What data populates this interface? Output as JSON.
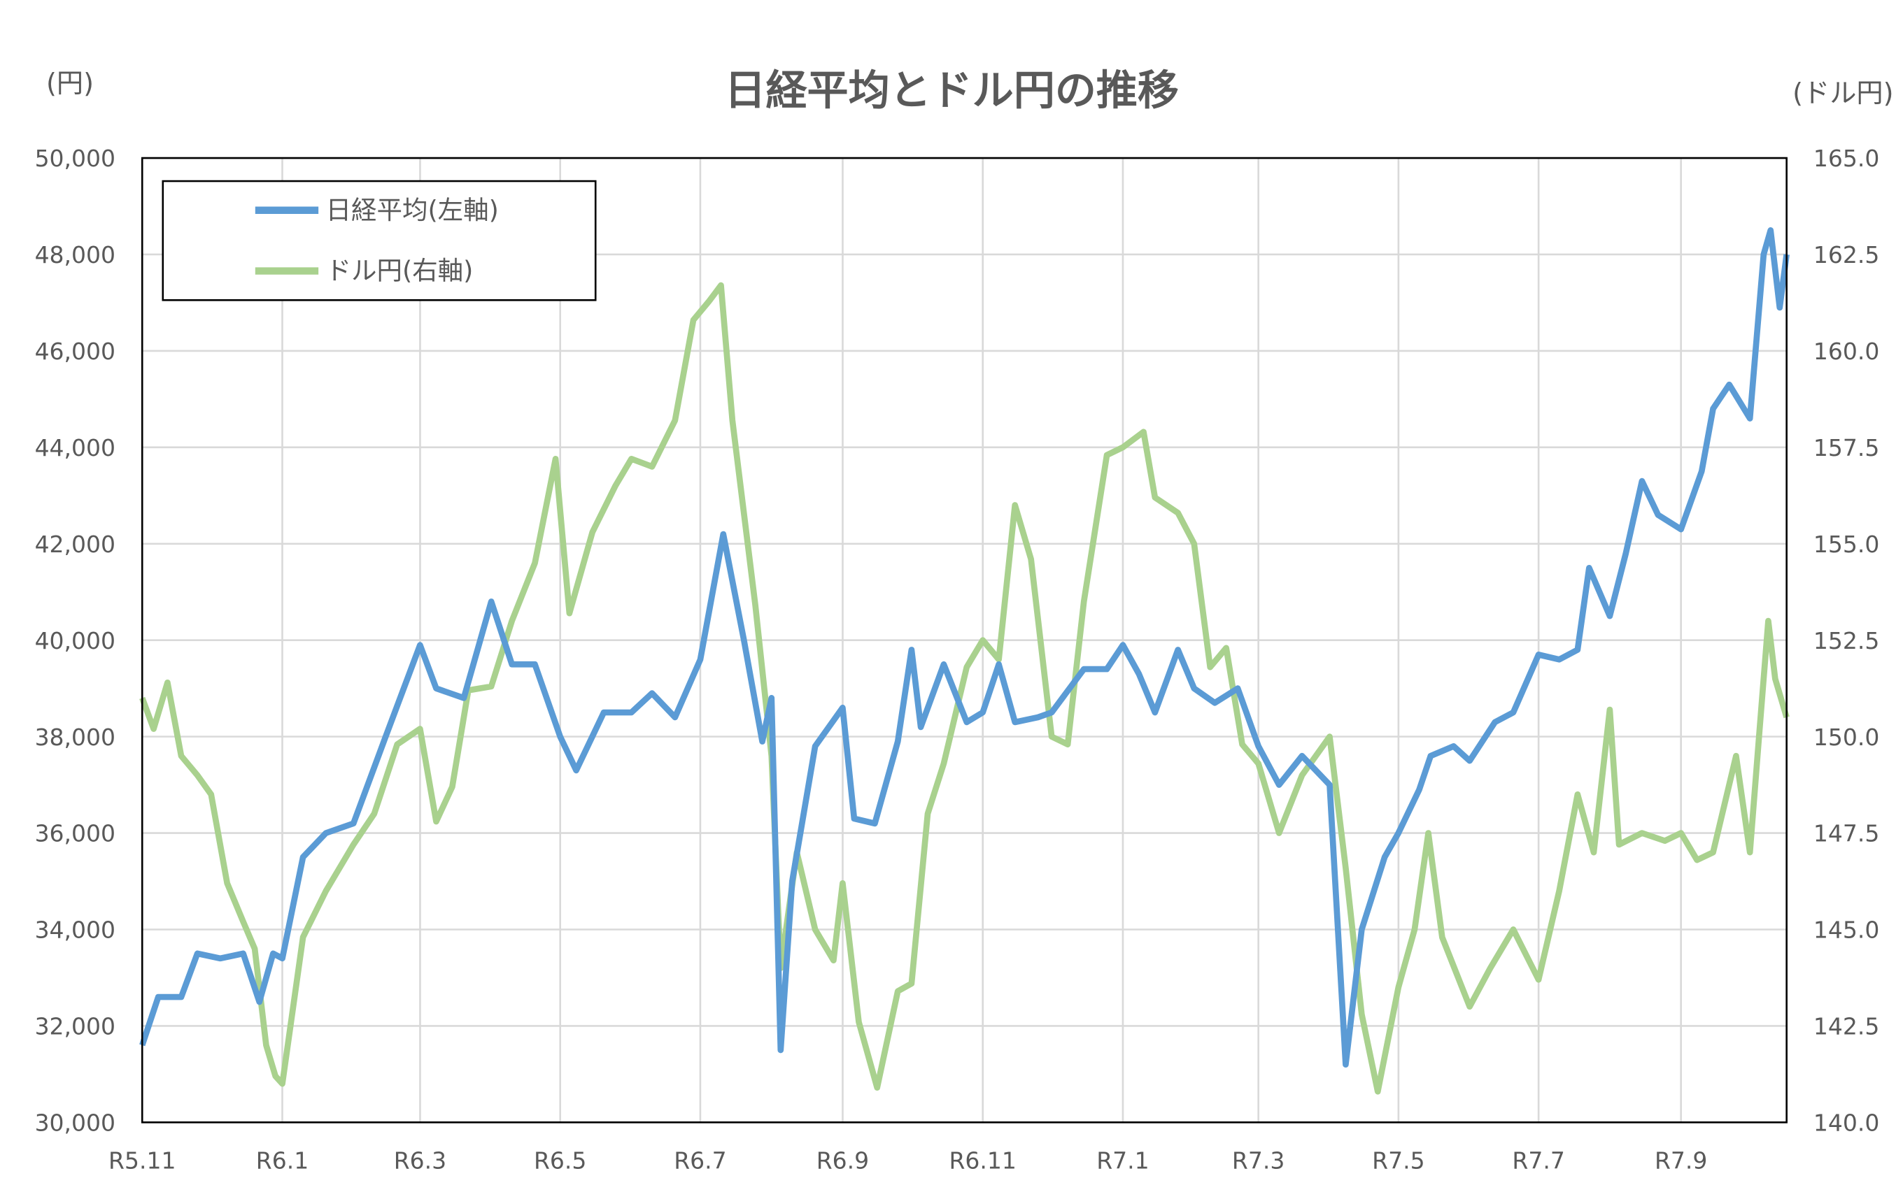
{
  "chart_data": {
    "type": "line",
    "title": "日経平均とドル円の推移",
    "left_unit": "(円)",
    "right_unit": "(ドル円)",
    "y_left": {
      "range": [
        30000,
        50000
      ],
      "ticks": [
        "30,000",
        "32,000",
        "34,000",
        "36,000",
        "38,000",
        "40,000",
        "42,000",
        "44,000",
        "46,000",
        "48,000",
        "50,000"
      ]
    },
    "y_right": {
      "range": [
        140.0,
        165.0
      ],
      "ticks": [
        "140.0",
        "142.5",
        "145.0",
        "147.5",
        "150.0",
        "152.5",
        "155.0",
        "157.5",
        "160.0",
        "162.5",
        "165.0"
      ]
    },
    "x_ticks": [
      {
        "label": "R5.11",
        "date": "2023-11-01"
      },
      {
        "label": "R6.1",
        "date": "2024-01-01"
      },
      {
        "label": "R6.3",
        "date": "2024-03-01"
      },
      {
        "label": "R6.5",
        "date": "2024-05-01"
      },
      {
        "label": "R6.7",
        "date": "2024-07-01"
      },
      {
        "label": "R6.9",
        "date": "2024-09-01"
      },
      {
        "label": "R6.11",
        "date": "2024-11-01"
      },
      {
        "label": "R7.1",
        "date": "2025-01-01"
      },
      {
        "label": "R7.3",
        "date": "2025-03-01"
      },
      {
        "label": "R7.5",
        "date": "2025-05-01"
      },
      {
        "label": "R7.7",
        "date": "2025-07-01"
      },
      {
        "label": "R7.9",
        "date": "2025-09-01"
      }
    ],
    "x_range": [
      "2023-11-01",
      "2025-10-17"
    ],
    "grid": true,
    "legend_position": "top-left",
    "series": [
      {
        "name": "日経平均(左軸)",
        "axis": "left",
        "color": "#5B9BD5",
        "points": [
          [
            "2023-11-01",
            31600
          ],
          [
            "2023-11-08",
            32600
          ],
          [
            "2023-11-18",
            32600
          ],
          [
            "2023-11-25",
            33500
          ],
          [
            "2023-12-05",
            33400
          ],
          [
            "2023-12-15",
            33500
          ],
          [
            "2023-12-22",
            32500
          ],
          [
            "2023-12-28",
            33500
          ],
          [
            "2024-01-01",
            33400
          ],
          [
            "2024-01-10",
            35500
          ],
          [
            "2024-01-20",
            36000
          ],
          [
            "2024-02-01",
            36200
          ],
          [
            "2024-02-15",
            38000
          ],
          [
            "2024-03-01",
            39900
          ],
          [
            "2024-03-08",
            39000
          ],
          [
            "2024-03-20",
            38800
          ],
          [
            "2024-04-01",
            40800
          ],
          [
            "2024-04-10",
            39500
          ],
          [
            "2024-04-20",
            39500
          ],
          [
            "2024-05-01",
            38000
          ],
          [
            "2024-05-08",
            37300
          ],
          [
            "2024-05-20",
            38500
          ],
          [
            "2024-06-01",
            38500
          ],
          [
            "2024-06-10",
            38900
          ],
          [
            "2024-06-20",
            38400
          ],
          [
            "2024-07-01",
            39600
          ],
          [
            "2024-07-11",
            42200
          ],
          [
            "2024-07-20",
            40000
          ],
          [
            "2024-07-28",
            37900
          ],
          [
            "2024-08-01",
            38800
          ],
          [
            "2024-08-05",
            31500
          ],
          [
            "2024-08-10",
            35000
          ],
          [
            "2024-08-20",
            37800
          ],
          [
            "2024-09-01",
            38600
          ],
          [
            "2024-09-06",
            36300
          ],
          [
            "2024-09-15",
            36200
          ],
          [
            "2024-09-25",
            37900
          ],
          [
            "2024-10-01",
            39800
          ],
          [
            "2024-10-05",
            38200
          ],
          [
            "2024-10-15",
            39500
          ],
          [
            "2024-10-25",
            38300
          ],
          [
            "2024-11-01",
            38500
          ],
          [
            "2024-11-08",
            39500
          ],
          [
            "2024-11-15",
            38300
          ],
          [
            "2024-11-25",
            38400
          ],
          [
            "2024-12-01",
            38500
          ],
          [
            "2024-12-15",
            39400
          ],
          [
            "2024-12-25",
            39400
          ],
          [
            "2025-01-01",
            39900
          ],
          [
            "2025-01-08",
            39300
          ],
          [
            "2025-01-15",
            38500
          ],
          [
            "2025-01-25",
            39800
          ],
          [
            "2025-02-01",
            39000
          ],
          [
            "2025-02-10",
            38700
          ],
          [
            "2025-02-20",
            39000
          ],
          [
            "2025-03-01",
            37800
          ],
          [
            "2025-03-10",
            37000
          ],
          [
            "2025-03-20",
            37600
          ],
          [
            "2025-04-01",
            37000
          ],
          [
            "2025-04-08",
            31200
          ],
          [
            "2025-04-15",
            34000
          ],
          [
            "2025-04-25",
            35500
          ],
          [
            "2025-05-01",
            36000
          ],
          [
            "2025-05-10",
            36900
          ],
          [
            "2025-05-15",
            37600
          ],
          [
            "2025-05-25",
            37800
          ],
          [
            "2025-06-01",
            37500
          ],
          [
            "2025-06-12",
            38300
          ],
          [
            "2025-06-20",
            38500
          ],
          [
            "2025-07-01",
            39700
          ],
          [
            "2025-07-10",
            39600
          ],
          [
            "2025-07-18",
            39800
          ],
          [
            "2025-07-23",
            41500
          ],
          [
            "2025-08-01",
            40500
          ],
          [
            "2025-08-08",
            41800
          ],
          [
            "2025-08-15",
            43300
          ],
          [
            "2025-08-22",
            42600
          ],
          [
            "2025-09-01",
            42300
          ],
          [
            "2025-09-10",
            43500
          ],
          [
            "2025-09-15",
            44800
          ],
          [
            "2025-09-22",
            45300
          ],
          [
            "2025-10-01",
            44600
          ],
          [
            "2025-10-07",
            48000
          ],
          [
            "2025-10-10",
            48500
          ],
          [
            "2025-10-14",
            46900
          ],
          [
            "2025-10-17",
            48000
          ]
        ]
      },
      {
        "name": "ドル円(右軸)",
        "axis": "right",
        "color": "#A9D18E",
        "points": [
          [
            "2023-11-01",
            151.0
          ],
          [
            "2023-11-06",
            150.2
          ],
          [
            "2023-11-12",
            151.4
          ],
          [
            "2023-11-18",
            149.5
          ],
          [
            "2023-11-25",
            149.0
          ],
          [
            "2023-12-01",
            148.5
          ],
          [
            "2023-12-08",
            146.2
          ],
          [
            "2023-12-15",
            145.2
          ],
          [
            "2023-12-20",
            144.5
          ],
          [
            "2023-12-25",
            142.0
          ],
          [
            "2023-12-29",
            141.2
          ],
          [
            "2024-01-01",
            141.0
          ],
          [
            "2024-01-10",
            144.8
          ],
          [
            "2024-01-20",
            146.0
          ],
          [
            "2024-02-01",
            147.2
          ],
          [
            "2024-02-10",
            148.0
          ],
          [
            "2024-02-20",
            149.8
          ],
          [
            "2024-03-01",
            150.2
          ],
          [
            "2024-03-08",
            147.8
          ],
          [
            "2024-03-15",
            148.7
          ],
          [
            "2024-03-22",
            151.2
          ],
          [
            "2024-04-01",
            151.3
          ],
          [
            "2024-04-10",
            153.0
          ],
          [
            "2024-04-20",
            154.5
          ],
          [
            "2024-04-29",
            157.2
          ],
          [
            "2024-05-05",
            153.2
          ],
          [
            "2024-05-15",
            155.3
          ],
          [
            "2024-05-25",
            156.5
          ],
          [
            "2024-06-01",
            157.2
          ],
          [
            "2024-06-10",
            157.0
          ],
          [
            "2024-06-20",
            158.2
          ],
          [
            "2024-06-28",
            160.8
          ],
          [
            "2024-07-05",
            161.3
          ],
          [
            "2024-07-10",
            161.7
          ],
          [
            "2024-07-15",
            158.2
          ],
          [
            "2024-07-25",
            153.4
          ],
          [
            "2024-08-01",
            149.5
          ],
          [
            "2024-08-05",
            144.0
          ],
          [
            "2024-08-12",
            147.0
          ],
          [
            "2024-08-20",
            145.0
          ],
          [
            "2024-08-28",
            144.2
          ],
          [
            "2024-09-01",
            146.2
          ],
          [
            "2024-09-08",
            142.6
          ],
          [
            "2024-09-16",
            140.9
          ],
          [
            "2024-09-25",
            143.4
          ],
          [
            "2024-10-01",
            143.6
          ],
          [
            "2024-10-08",
            148.0
          ],
          [
            "2024-10-15",
            149.3
          ],
          [
            "2024-10-25",
            151.8
          ],
          [
            "2024-11-01",
            152.5
          ],
          [
            "2024-11-08",
            152.0
          ],
          [
            "2024-11-15",
            156.0
          ],
          [
            "2024-11-22",
            154.6
          ],
          [
            "2024-12-01",
            150.0
          ],
          [
            "2024-12-08",
            149.8
          ],
          [
            "2024-12-15",
            153.5
          ],
          [
            "2024-12-25",
            157.3
          ],
          [
            "2025-01-01",
            157.5
          ],
          [
            "2025-01-10",
            157.9
          ],
          [
            "2025-01-15",
            156.2
          ],
          [
            "2025-01-25",
            155.8
          ],
          [
            "2025-02-01",
            155.0
          ],
          [
            "2025-02-08",
            151.8
          ],
          [
            "2025-02-15",
            152.3
          ],
          [
            "2025-02-22",
            149.8
          ],
          [
            "2025-03-01",
            149.3
          ],
          [
            "2025-03-10",
            147.5
          ],
          [
            "2025-03-20",
            149.0
          ],
          [
            "2025-04-01",
            150.0
          ],
          [
            "2025-04-08",
            146.6
          ],
          [
            "2025-04-15",
            142.8
          ],
          [
            "2025-04-22",
            140.8
          ],
          [
            "2025-05-01",
            143.5
          ],
          [
            "2025-05-08",
            145.0
          ],
          [
            "2025-05-14",
            147.5
          ],
          [
            "2025-05-20",
            144.8
          ],
          [
            "2025-06-01",
            143.0
          ],
          [
            "2025-06-10",
            144.0
          ],
          [
            "2025-06-20",
            145.0
          ],
          [
            "2025-07-01",
            143.7
          ],
          [
            "2025-07-10",
            146.0
          ],
          [
            "2025-07-18",
            148.5
          ],
          [
            "2025-07-25",
            147.0
          ],
          [
            "2025-08-01",
            150.7
          ],
          [
            "2025-08-05",
            147.2
          ],
          [
            "2025-08-15",
            147.5
          ],
          [
            "2025-08-25",
            147.3
          ],
          [
            "2025-09-01",
            147.5
          ],
          [
            "2025-09-08",
            146.8
          ],
          [
            "2025-09-15",
            147.0
          ],
          [
            "2025-09-25",
            149.5
          ],
          [
            "2025-10-01",
            147.0
          ],
          [
            "2025-10-05",
            150.0
          ],
          [
            "2025-10-09",
            153.0
          ],
          [
            "2025-10-12",
            151.5
          ],
          [
            "2025-10-17",
            150.5
          ]
        ]
      }
    ]
  }
}
